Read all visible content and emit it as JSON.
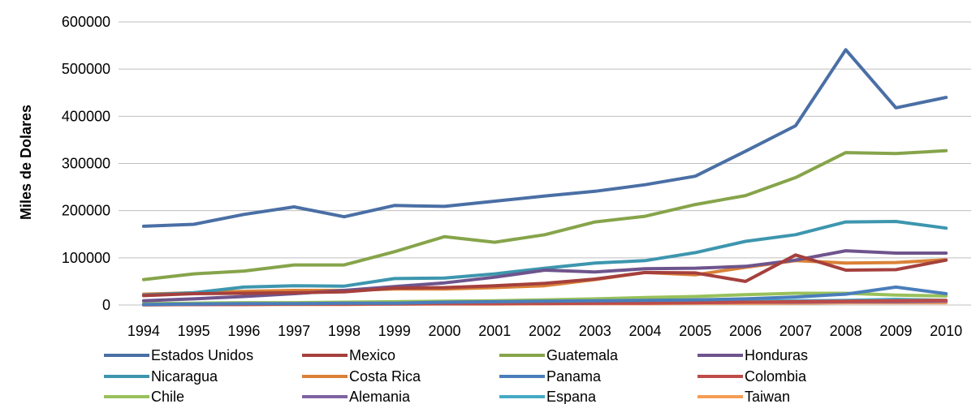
{
  "chart_data": {
    "type": "line",
    "title": "",
    "xlabel": "",
    "ylabel": "Miles de Dolares",
    "ylim": [
      0,
      600000
    ],
    "yticks": [
      "0",
      "100000",
      "200000",
      "300000",
      "400000",
      "500000",
      "600000"
    ],
    "grid": "horizontal",
    "legend_position": "bottom",
    "categories": [
      "1994",
      "1995",
      "1996",
      "1997",
      "1998",
      "1999",
      "2000",
      "2001",
      "2002",
      "2003",
      "2004",
      "2005",
      "2006",
      "2007",
      "2008",
      "2009",
      "2010"
    ],
    "series": [
      {
        "name": "Estados Unidos",
        "color": "#4A6FA5",
        "values": [
          167000,
          171000,
          192000,
          208000,
          187000,
          211000,
          209000,
          220000,
          231000,
          241000,
          255000,
          273000,
          326000,
          380000,
          541000,
          418000,
          440000
        ]
      },
      {
        "name": "Mexico",
        "color": "#A5403D",
        "values": [
          20000,
          24000,
          25000,
          26000,
          28000,
          36000,
          37000,
          41000,
          46000,
          55000,
          69000,
          68000,
          50000,
          106000,
          74000,
          75000,
          95000
        ]
      },
      {
        "name": "Guatemala",
        "color": "#86A44A",
        "values": [
          54000,
          66000,
          72000,
          85000,
          85000,
          113000,
          145000,
          133000,
          149000,
          176000,
          188000,
          213000,
          232000,
          270000,
          323000,
          321000,
          327000
        ]
      },
      {
        "name": "Honduras",
        "color": "#6E548D",
        "values": [
          9000,
          13000,
          18000,
          24000,
          31000,
          39000,
          47000,
          59000,
          74000,
          70000,
          77000,
          78000,
          82000,
          95000,
          115000,
          110000,
          110000
        ]
      },
      {
        "name": "Nicaragua",
        "color": "#3D96AE",
        "values": [
          21000,
          26000,
          38000,
          41000,
          40000,
          56000,
          57000,
          66000,
          78000,
          89000,
          94000,
          111000,
          135000,
          149000,
          176000,
          177000,
          163000
        ]
      },
      {
        "name": "Costa Rica",
        "color": "#DA8137",
        "values": [
          23000,
          26000,
          29000,
          31000,
          31000,
          34000,
          34000,
          37000,
          41000,
          54000,
          69000,
          64000,
          80000,
          94000,
          89000,
          90000,
          96000
        ]
      },
      {
        "name": "Panama",
        "color": "#4A7EBB",
        "values": [
          1000,
          2000,
          3000,
          3000,
          4000,
          4000,
          6000,
          7000,
          8000,
          9000,
          10000,
          11000,
          13000,
          17000,
          23000,
          38000,
          24000
        ]
      },
      {
        "name": "Colombia",
        "color": "#BE4B48",
        "values": [
          500,
          1000,
          1000,
          2000,
          2000,
          2000,
          3000,
          3000,
          3000,
          4000,
          4000,
          5000,
          6000,
          7000,
          8000,
          9000,
          10000
        ]
      },
      {
        "name": "Chile",
        "color": "#98C15A",
        "values": [
          3000,
          4000,
          5000,
          5000,
          6000,
          7000,
          8000,
          9000,
          11000,
          13000,
          16000,
          18000,
          22000,
          25000,
          25000,
          21000,
          19000
        ]
      },
      {
        "name": "Alemania",
        "color": "#7F63A1",
        "values": [
          1000,
          1000,
          2000,
          2000,
          2000,
          3000,
          3000,
          3000,
          4000,
          4000,
          5000,
          5000,
          6000,
          6000,
          7000,
          7000,
          8000
        ]
      },
      {
        "name": "Espana",
        "color": "#46AAC5",
        "values": [
          2000,
          2000,
          3000,
          3000,
          3000,
          4000,
          4000,
          5000,
          5000,
          6000,
          7000,
          7000,
          8000,
          9000,
          10000,
          12000,
          10000
        ]
      },
      {
        "name": "Taiwan",
        "color": "#F59D56",
        "values": [
          500,
          1000,
          1000,
          1000,
          1000,
          2000,
          2000,
          2000,
          3000,
          3000,
          3000,
          4000,
          4000,
          4000,
          5000,
          5000,
          5000
        ]
      }
    ]
  }
}
